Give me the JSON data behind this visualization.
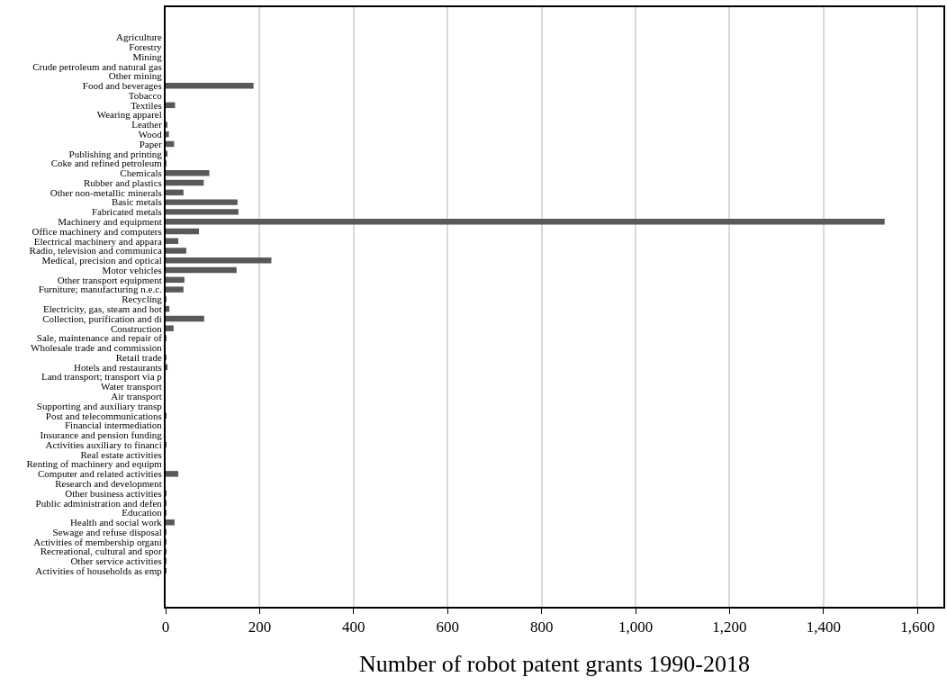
{
  "chart_data": {
    "type": "bar",
    "orientation": "horizontal",
    "xlabel": "Number of robot patent grants 1990-2018",
    "color": "#595959",
    "categories": [
      "Agriculture",
      "Forestry",
      "Mining",
      "Crude petroleum and natural gas",
      "Other mining",
      "Food and beverages",
      "Tobacco",
      "Textiles",
      "Wearing apparel",
      "Leather",
      "Wood",
      "Paper",
      "Publishing and printing",
      "Coke and refined petroleum",
      "Chemicals",
      "Rubber and plastics",
      "Other non-metallic minerals",
      "Basic metals",
      "Fabricated metals",
      "Machinery and equipment",
      "Office machinery and computers",
      "Electrical machinery and appara",
      "Radio, television and communica",
      "Medical, precision and optical",
      "Motor vehicles",
      "Other transport equipment",
      "Furniture; manufacturing n.e.c.",
      "Recycling",
      "Electricity, gas, steam and hot",
      "Collection, purification and di",
      "Construction",
      "Sale, maintenance and repair of",
      "Wholesale trade and commission",
      "Retail trade",
      "Hotels and restaurants",
      "Land transport; transport via p",
      "Water transport",
      "Air transport",
      "Supporting and auxiliary transp",
      "Post and telecommunications",
      "Financial intermediation",
      "Insurance and pension funding",
      "Activities auxiliary to financi",
      "Real estate activities",
      "Renting of machinery and equipm",
      "Computer and related activities",
      "Research and development",
      "Other business activities",
      "Public administration and defen",
      "Education",
      "Health and social work",
      "Sewage and refuse disposal",
      "Activities of membership organi",
      "Recreational, cultural and spor",
      "Other service activities",
      "Activities of households as emp"
    ],
    "values": [
      0,
      0,
      0,
      0,
      0,
      187,
      0,
      20,
      0,
      2,
      7,
      18,
      4,
      1,
      93,
      81,
      38,
      153,
      155,
      1530,
      71,
      27,
      44,
      225,
      151,
      40,
      38,
      1,
      8,
      82,
      17,
      1,
      0,
      1,
      4,
      0,
      0,
      0,
      0,
      1,
      0,
      0,
      1,
      0,
      0,
      27,
      0,
      1,
      1,
      1,
      19,
      1,
      1,
      1,
      1,
      1
    ],
    "xlim": [
      0,
      1655
    ],
    "xticks": [
      0,
      200,
      400,
      600,
      800,
      {
        "value": 1000,
        "label": "1,000"
      },
      {
        "value": 1200,
        "label": "1,200"
      },
      {
        "value": 1400,
        "label": "1,400"
      },
      {
        "value": 1600,
        "label": "1,600"
      }
    ],
    "grid": "x"
  }
}
